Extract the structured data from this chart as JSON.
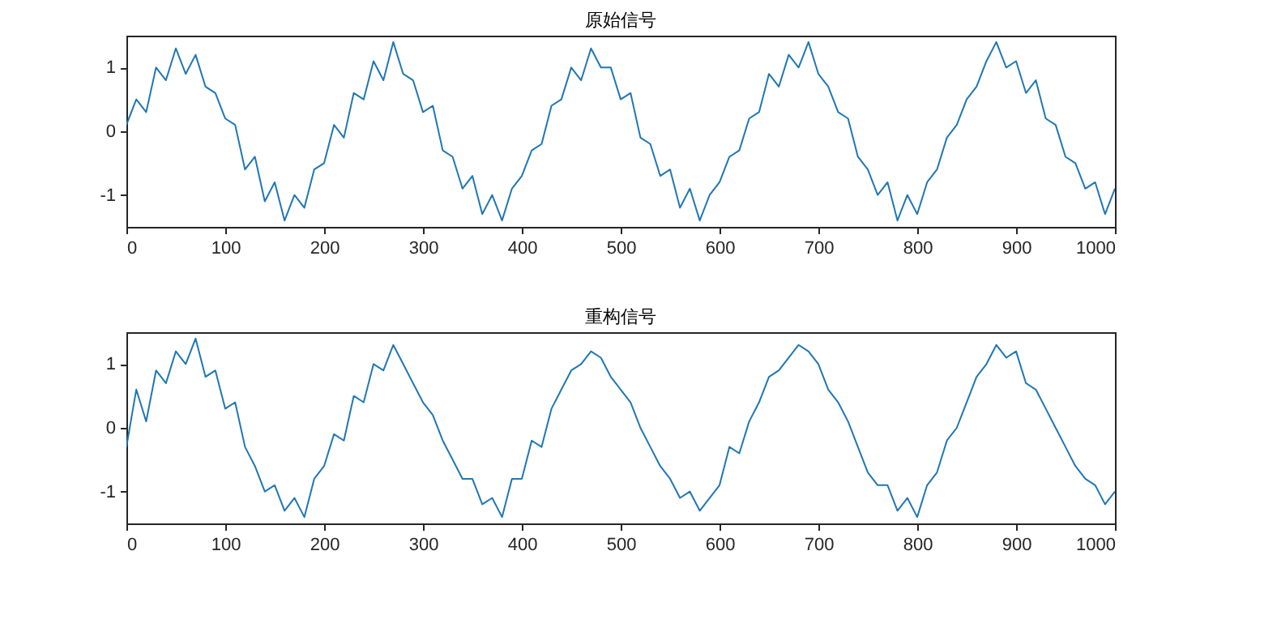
{
  "chart_data": [
    {
      "type": "line",
      "title": "原始信号",
      "xlim": [
        0,
        1000
      ],
      "xticks": [
        0,
        100,
        200,
        300,
        400,
        500,
        600,
        700,
        800,
        900,
        1000
      ],
      "ylim": [
        -1.5,
        1.5
      ],
      "yticks": [
        -1,
        0,
        1
      ],
      "grid": false,
      "x": [
        0,
        10,
        20,
        30,
        40,
        50,
        60,
        70,
        80,
        90,
        100,
        110,
        120,
        130,
        140,
        150,
        160,
        170,
        180,
        190,
        200,
        210,
        220,
        230,
        240,
        250,
        260,
        270,
        280,
        290,
        300,
        310,
        320,
        330,
        340,
        350,
        360,
        370,
        380,
        390,
        400,
        410,
        420,
        430,
        440,
        450,
        460,
        470,
        480,
        490,
        500,
        510,
        520,
        530,
        540,
        550,
        560,
        570,
        580,
        590,
        600,
        610,
        620,
        630,
        640,
        650,
        660,
        670,
        680,
        690,
        700,
        710,
        720,
        730,
        740,
        750,
        760,
        770,
        780,
        790,
        800,
        810,
        820,
        830,
        840,
        850,
        860,
        870,
        880,
        890,
        900,
        910,
        920,
        930,
        940,
        950,
        960,
        970,
        980,
        990,
        1000
      ],
      "series": [
        {
          "color": "#1f77b4",
          "values": [
            0.1,
            0.5,
            0.3,
            1.0,
            0.8,
            1.3,
            0.9,
            1.2,
            0.7,
            0.6,
            0.2,
            0.1,
            -0.6,
            -0.4,
            -1.1,
            -0.8,
            -1.4,
            -1.0,
            -1.2,
            -0.6,
            -0.5,
            0.1,
            -0.1,
            0.6,
            0.5,
            1.1,
            0.8,
            1.4,
            0.9,
            0.8,
            0.3,
            0.4,
            -0.3,
            -0.4,
            -0.9,
            -0.7,
            -1.3,
            -1.0,
            -1.4,
            -0.9,
            -0.7,
            -0.3,
            -0.2,
            0.4,
            0.5,
            1.0,
            0.8,
            1.3,
            1.0,
            1.0,
            0.5,
            0.6,
            -0.1,
            -0.2,
            -0.7,
            -0.6,
            -1.2,
            -0.9,
            -1.4,
            -1.0,
            -0.8,
            -0.4,
            -0.3,
            0.2,
            0.3,
            0.9,
            0.7,
            1.2,
            1.0,
            1.4,
            0.9,
            0.7,
            0.3,
            0.2,
            -0.4,
            -0.6,
            -1.0,
            -0.8,
            -1.4,
            -1.0,
            -1.3,
            -0.8,
            -0.6,
            -0.1,
            0.1,
            0.5,
            0.7,
            1.1,
            1.4,
            1.0,
            1.1,
            0.6,
            0.8,
            0.2,
            0.1,
            -0.4,
            -0.5,
            -0.9,
            -0.8,
            -1.3,
            -0.9
          ]
        }
      ]
    },
    {
      "type": "line",
      "title": "重构信号",
      "xlim": [
        0,
        1000
      ],
      "xticks": [
        0,
        100,
        200,
        300,
        400,
        500,
        600,
        700,
        800,
        900,
        1000
      ],
      "ylim": [
        -1.5,
        1.5
      ],
      "yticks": [
        -1,
        0,
        1
      ],
      "grid": false,
      "x": [
        0,
        10,
        20,
        30,
        40,
        50,
        60,
        70,
        80,
        90,
        100,
        110,
        120,
        130,
        140,
        150,
        160,
        170,
        180,
        190,
        200,
        210,
        220,
        230,
        240,
        250,
        260,
        270,
        280,
        290,
        300,
        310,
        320,
        330,
        340,
        350,
        360,
        370,
        380,
        390,
        400,
        410,
        420,
        430,
        440,
        450,
        460,
        470,
        480,
        490,
        500,
        510,
        520,
        530,
        540,
        550,
        560,
        570,
        580,
        590,
        600,
        610,
        620,
        630,
        640,
        650,
        660,
        670,
        680,
        690,
        700,
        710,
        720,
        730,
        740,
        750,
        760,
        770,
        780,
        790,
        800,
        810,
        820,
        830,
        840,
        850,
        860,
        870,
        880,
        890,
        900,
        910,
        920,
        930,
        940,
        950,
        960,
        970,
        980,
        990,
        1000
      ],
      "series": [
        {
          "color": "#1f77b4",
          "values": [
            -0.3,
            0.6,
            0.1,
            0.9,
            0.7,
            1.2,
            1.0,
            1.4,
            0.8,
            0.9,
            0.3,
            0.4,
            -0.3,
            -0.6,
            -1.0,
            -0.9,
            -1.3,
            -1.1,
            -1.4,
            -0.8,
            -0.6,
            -0.1,
            -0.2,
            0.5,
            0.4,
            1.0,
            0.9,
            1.3,
            1.0,
            0.7,
            0.4,
            0.2,
            -0.2,
            -0.5,
            -0.8,
            -0.8,
            -1.2,
            -1.1,
            -1.4,
            -0.8,
            -0.8,
            -0.2,
            -0.3,
            0.3,
            0.6,
            0.9,
            1.0,
            1.2,
            1.1,
            0.8,
            0.6,
            0.4,
            0.0,
            -0.3,
            -0.6,
            -0.8,
            -1.1,
            -1.0,
            -1.3,
            -1.1,
            -0.9,
            -0.3,
            -0.4,
            0.1,
            0.4,
            0.8,
            0.9,
            1.1,
            1.3,
            1.2,
            1.0,
            0.6,
            0.4,
            0.1,
            -0.3,
            -0.7,
            -0.9,
            -0.9,
            -1.3,
            -1.1,
            -1.4,
            -0.9,
            -0.7,
            -0.2,
            0.0,
            0.4,
            0.8,
            1.0,
            1.3,
            1.1,
            1.2,
            0.7,
            0.6,
            0.3,
            0.0,
            -0.3,
            -0.6,
            -0.8,
            -0.9,
            -1.2,
            -1.0
          ]
        }
      ]
    }
  ]
}
